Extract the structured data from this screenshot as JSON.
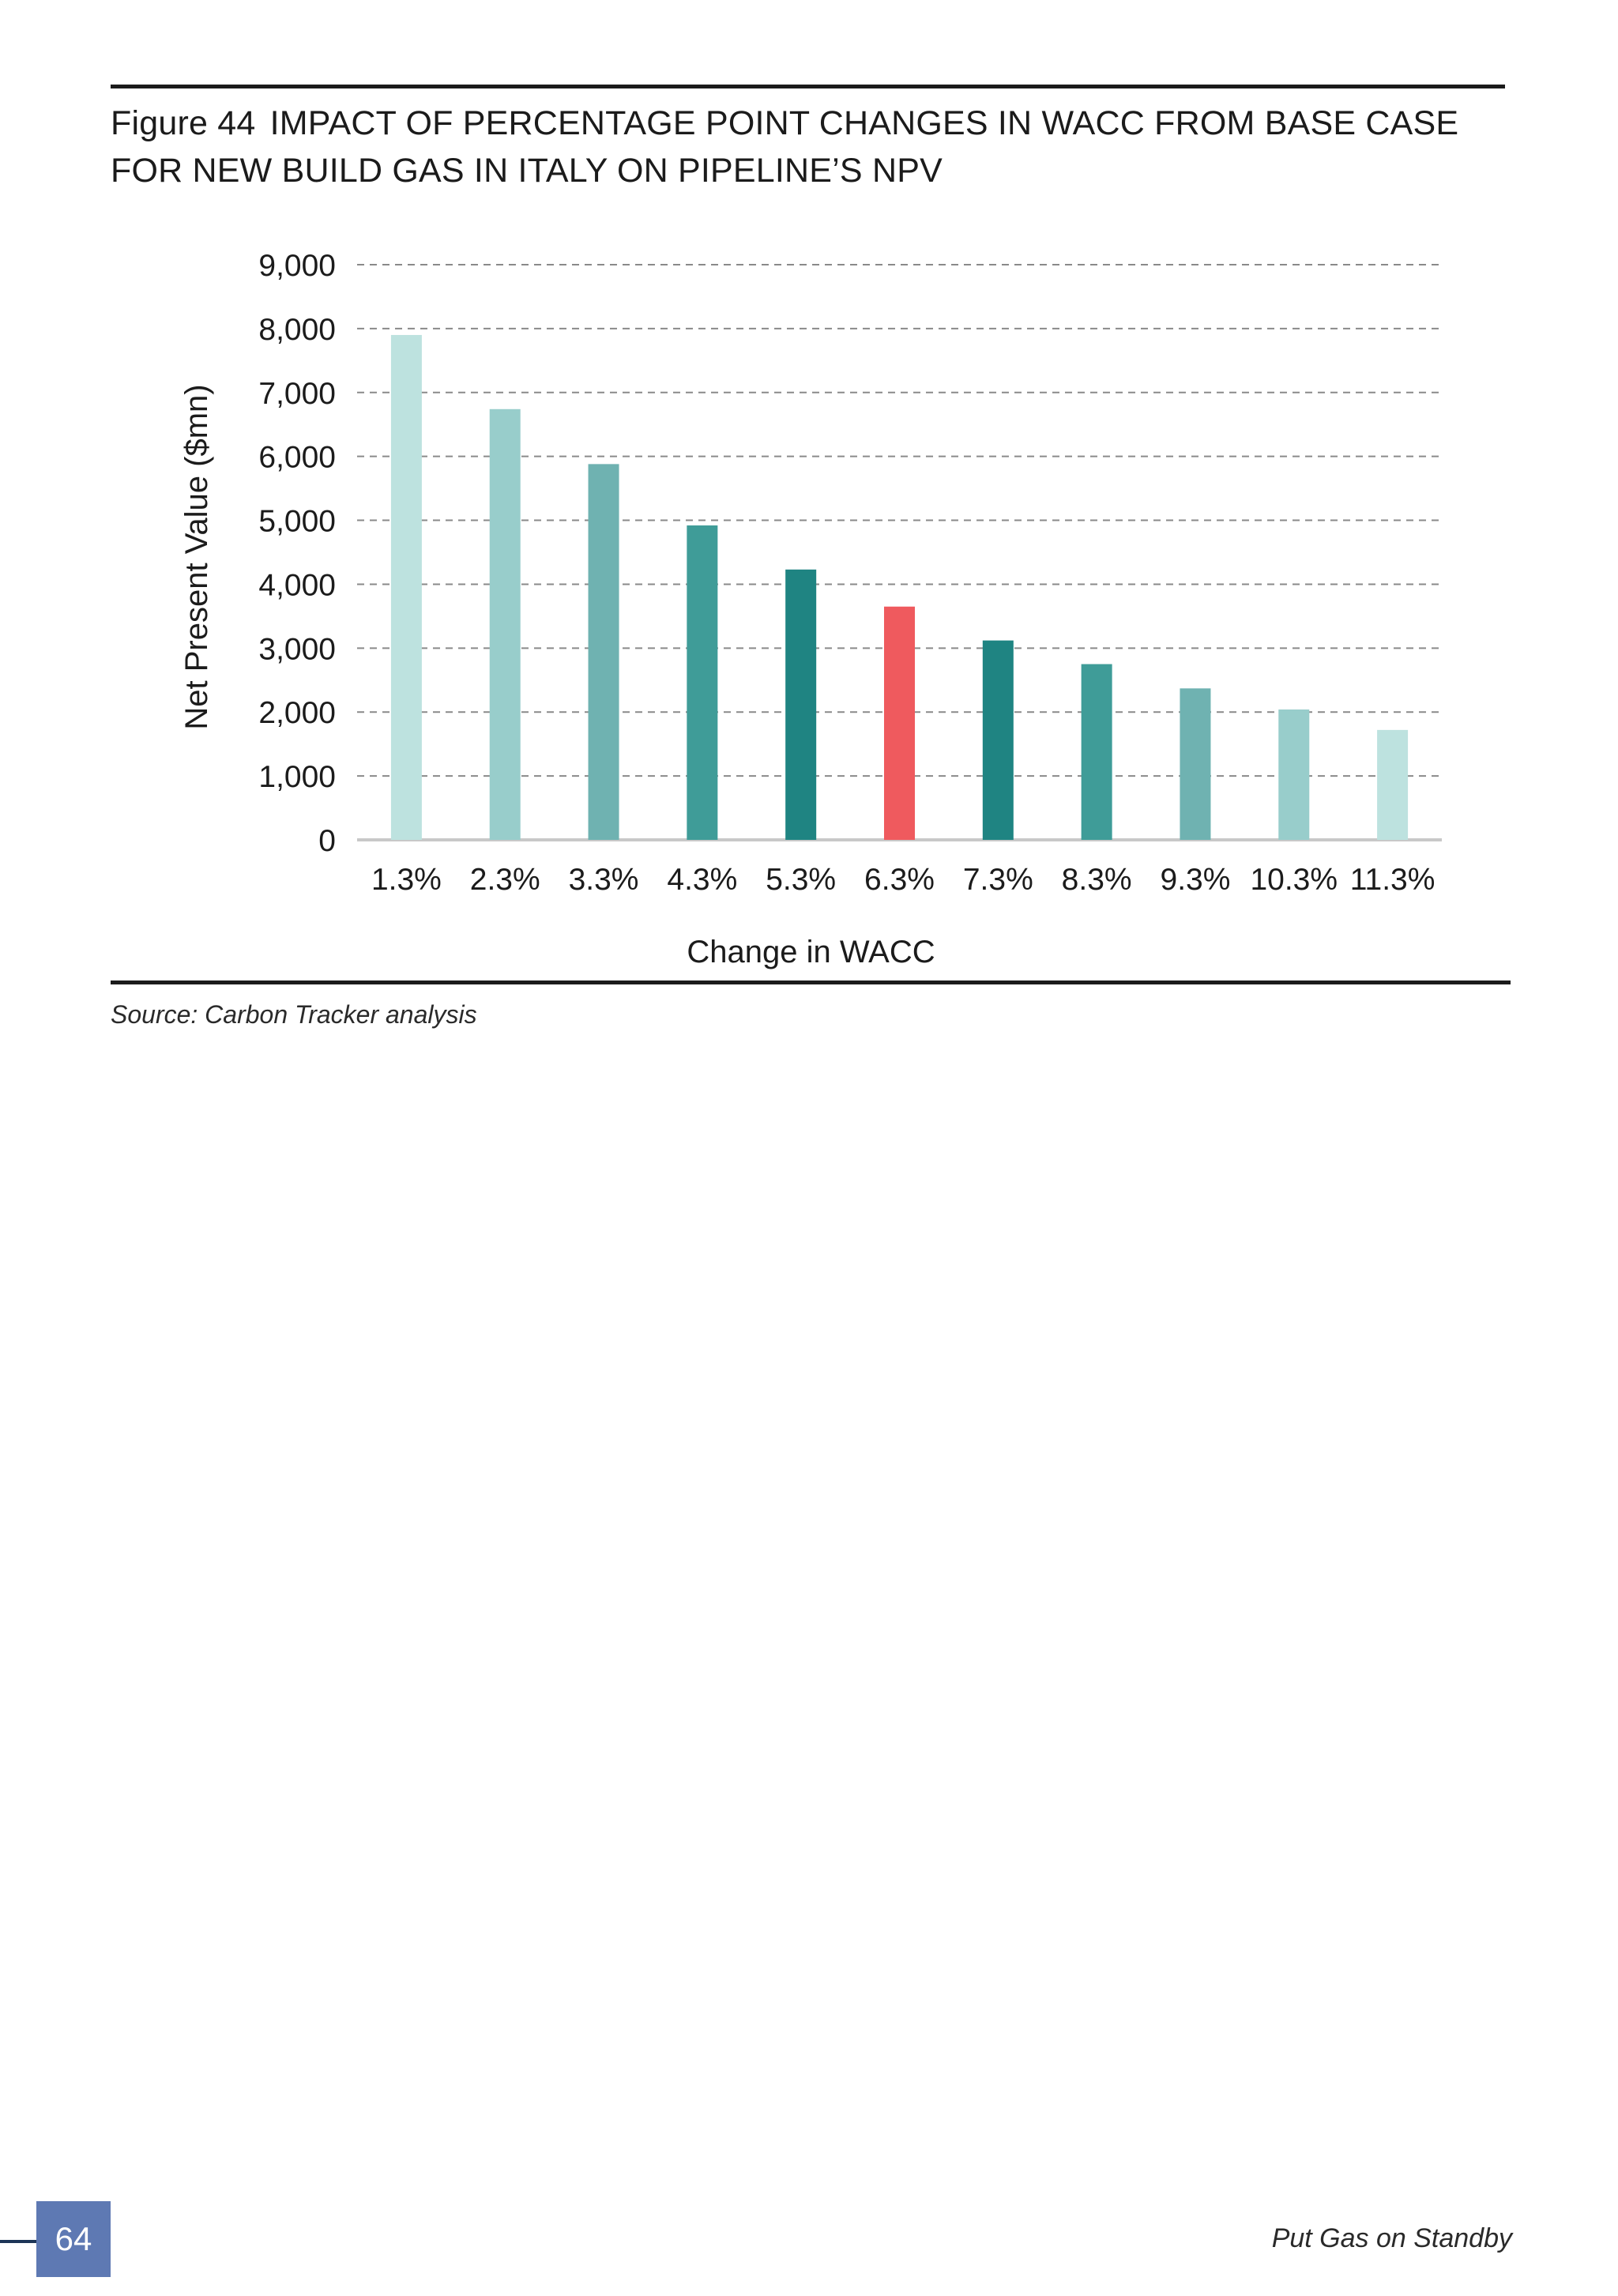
{
  "figure": {
    "number": "Figure 44",
    "title": "IMPACT OF PERCENTAGE POINT CHANGES IN WACC FROM BASE CASE FOR NEW BUILD GAS IN ITALY ON PIPELINE’S NPV"
  },
  "source": "Source: Carbon Tracker analysis",
  "footer": {
    "page_number": "64",
    "publication": "Put Gas on Standby"
  },
  "chart_data": {
    "type": "bar",
    "categories": [
      "1.3%",
      "2.3%",
      "3.3%",
      "4.3%",
      "5.3%",
      "6.3%",
      "7.3%",
      "8.3%",
      "9.3%",
      "10.3%",
      "11.3%"
    ],
    "values": [
      7900,
      6740,
      5880,
      4920,
      4230,
      3650,
      3120,
      2750,
      2370,
      2040,
      1720
    ],
    "colors": [
      "#bde2df",
      "#98cdcb",
      "#6fb2b1",
      "#3f9c98",
      "#1f8482",
      "#ef5a5e",
      "#1f8482",
      "#3f9c98",
      "#6fb2b1",
      "#98cdcb",
      "#bde2df"
    ],
    "title": "",
    "xlabel": "Change in WACC",
    "ylabel": "Net Present Value ($mn)",
    "ylim": [
      0,
      9000
    ],
    "yticks": [
      0,
      1000,
      2000,
      3000,
      4000,
      5000,
      6000,
      7000,
      8000,
      9000
    ],
    "ytick_labels": [
      "0",
      "1,000",
      "2,000",
      "3,000",
      "4,000",
      "5,000",
      "6,000",
      "7,000",
      "8,000",
      "9,000"
    ],
    "grid": true,
    "legend": "none"
  }
}
